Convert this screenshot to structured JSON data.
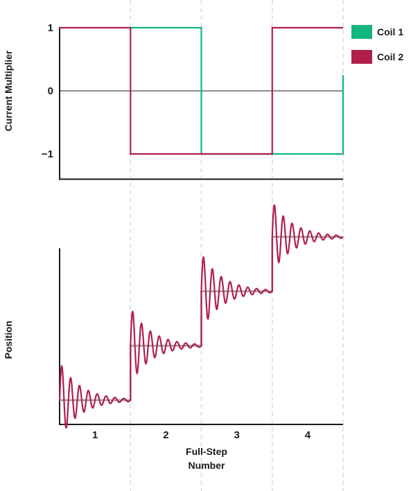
{
  "colors": {
    "coil1": "#11b57e",
    "coil2": "#b21e4b",
    "target": "#9a9a9a",
    "axis": "#1a1a1a",
    "grid": "#d4d4d4"
  },
  "chart_data": [
    {
      "type": "line",
      "title": "",
      "xlabel": "",
      "ylabel": "Current Multiplier",
      "yticks": [
        "1",
        "0",
        "−1"
      ],
      "ylim": [
        -1.4,
        1.0
      ],
      "xlim": [
        0,
        4
      ],
      "grid": "vertical dashed lines at step boundaries",
      "legend_position": "top-right",
      "series": [
        {
          "name": "Coil 1",
          "color_key": "coil1",
          "points": [
            [
              1.0,
              1
            ],
            [
              2.0,
              1
            ],
            [
              2.0,
              -1
            ],
            [
              4.0,
              -1
            ],
            [
              4.0,
              0.25
            ]
          ]
        },
        {
          "name": "Coil 2",
          "color_key": "coil2",
          "points": [
            [
              0.0,
              1
            ],
            [
              1.0,
              1
            ],
            [
              1.0,
              -1
            ],
            [
              3.0,
              -1
            ],
            [
              3.0,
              1
            ],
            [
              4.0,
              1
            ]
          ]
        }
      ]
    },
    {
      "type": "line",
      "title": "",
      "xlabel": "Full-Step Number",
      "ylabel": "Position",
      "xticks": [
        {
          "x": 0.5,
          "label": "1"
        },
        {
          "x": 1.5,
          "label": "2"
        },
        {
          "x": 2.5,
          "label": "3"
        },
        {
          "x": 3.5,
          "label": "4"
        }
      ],
      "xlim": [
        0,
        4
      ],
      "ylim": [
        -0.5,
        3.2
      ],
      "steps": [
        {
          "start": 0,
          "end": 1,
          "level": 0,
          "amplitude": 0.7
        },
        {
          "start": 1,
          "end": 2,
          "level": 1,
          "amplitude": 0.7
        },
        {
          "start": 2,
          "end": 3,
          "level": 2,
          "amplitude": 0.7
        },
        {
          "start": 3,
          "end": 4,
          "level": 3,
          "amplitude": 0.65
        }
      ],
      "oscillation": {
        "cycles_per_step": 8,
        "decay": 3.4
      },
      "series": [
        {
          "name": "",
          "color_key": "target",
          "kind": "staircase"
        },
        {
          "name": "",
          "color_key": "coil2",
          "kind": "ringing"
        }
      ]
    }
  ],
  "legend": [
    {
      "label": "Coil 1",
      "color_key": "coil1"
    },
    {
      "label": "Coil 2",
      "color_key": "coil2"
    }
  ],
  "axis_titles": {
    "top_y": "Current Multiplier",
    "bottom_y": "Position",
    "x_line1": "Full-Step",
    "x_line2": "Number"
  }
}
